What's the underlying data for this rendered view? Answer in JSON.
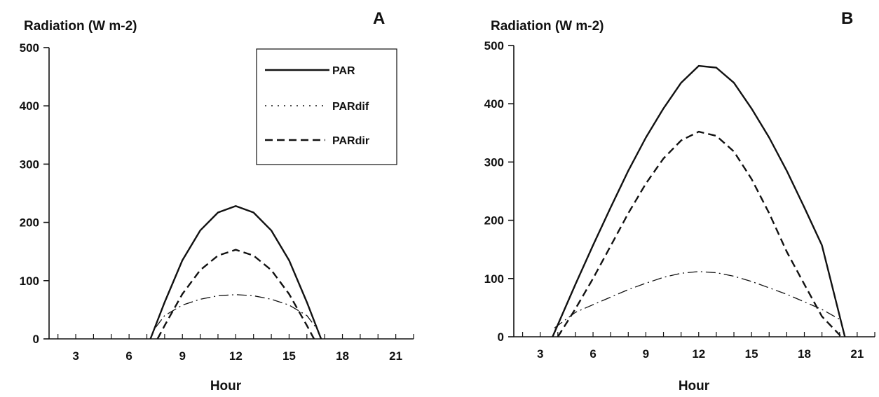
{
  "chart_data": [
    {
      "type": "line",
      "panel_label": "A",
      "ylabel": "Radiation (W m-2)",
      "xlabel": "Hour",
      "xlim": [
        1.5,
        22
      ],
      "ylim": [
        0,
        500
      ],
      "xticks": [
        3,
        6,
        9,
        12,
        15,
        18,
        21
      ],
      "yticks": [
        0,
        100,
        200,
        300,
        400,
        500
      ],
      "legend": {
        "position": "top-right",
        "entries": [
          "PAR",
          "PARdif",
          "PARdir"
        ]
      },
      "series": [
        {
          "name": "PAR",
          "style": "solid",
          "x": [
            7.2,
            8,
            9,
            10,
            11,
            12,
            13,
            14,
            15,
            16,
            16.8
          ],
          "y": [
            0,
            63,
            135,
            186,
            217,
            228,
            217,
            186,
            135,
            63,
            0
          ]
        },
        {
          "name": "PARdif",
          "style": "dashdot",
          "x": [
            7.5,
            8,
            9,
            10,
            11,
            12,
            13,
            14,
            15,
            16,
            16.5
          ],
          "y": [
            20,
            40,
            58,
            68,
            74,
            76,
            74,
            68,
            58,
            40,
            20
          ]
        },
        {
          "name": "PARdir",
          "style": "dashed",
          "x": [
            7.6,
            8,
            9,
            10,
            11,
            12,
            13,
            14,
            15,
            16,
            16.4
          ],
          "y": [
            0,
            23,
            77,
            118,
            143,
            153,
            143,
            118,
            77,
            23,
            0
          ]
        }
      ]
    },
    {
      "type": "line",
      "panel_label": "B",
      "ylabel": "Radiation (W m-2)",
      "xlabel": "Hour",
      "xlim": [
        1.5,
        22
      ],
      "ylim": [
        0,
        500
      ],
      "xticks": [
        3,
        6,
        9,
        12,
        15,
        18,
        21
      ],
      "yticks": [
        0,
        100,
        200,
        300,
        400,
        500
      ],
      "series": [
        {
          "name": "PAR",
          "style": "solid",
          "x": [
            3.7,
            5,
            6,
            7,
            8,
            9,
            10,
            11,
            12,
            13,
            14,
            15,
            16,
            17,
            18,
            19,
            20.3
          ],
          "y": [
            0,
            90,
            157,
            222,
            285,
            342,
            392,
            436,
            465,
            462,
            436,
            392,
            342,
            285,
            222,
            157,
            0
          ]
        },
        {
          "name": "PARdif",
          "style": "dashdot",
          "x": [
            3.8,
            5,
            6,
            7,
            8,
            9,
            10,
            11,
            12,
            13,
            14,
            15,
            16,
            17,
            18,
            19,
            20
          ],
          "y": [
            15,
            42,
            55,
            68,
            81,
            92,
            102,
            109,
            112,
            110,
            104,
            95,
            84,
            73,
            60,
            47,
            30
          ]
        },
        {
          "name": "PARdir",
          "style": "dashed",
          "x": [
            4.0,
            5,
            6,
            7,
            8,
            9,
            10,
            11,
            12,
            13,
            14,
            15,
            16,
            17,
            18,
            19,
            20.1
          ],
          "y": [
            0,
            48,
            100,
            156,
            212,
            263,
            306,
            337,
            352,
            345,
            318,
            271,
            212,
            146,
            90,
            35,
            0
          ]
        }
      ]
    }
  ]
}
